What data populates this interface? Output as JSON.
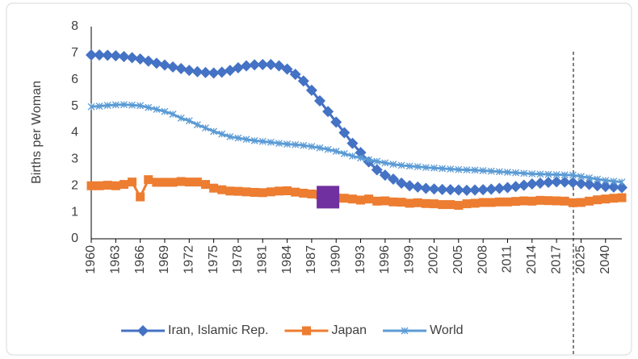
{
  "chart_data": {
    "type": "line",
    "y_label": "Births per Woman",
    "categories": [
      "1960",
      null,
      null,
      "1963",
      null,
      null,
      "1966",
      null,
      null,
      "1969",
      null,
      null,
      "1972",
      null,
      null,
      "1975",
      null,
      null,
      "1978",
      null,
      null,
      "1981",
      null,
      null,
      "1984",
      null,
      null,
      "1987",
      null,
      null,
      "1990",
      null,
      null,
      "1993",
      null,
      null,
      "1996",
      null,
      null,
      "1999",
      null,
      null,
      "2002",
      null,
      null,
      "2005",
      null,
      null,
      "2008",
      null,
      null,
      "2011",
      null,
      null,
      "2014",
      null,
      null,
      "2017",
      null,
      null,
      "2025",
      null,
      null,
      "2040",
      null,
      null
    ],
    "series": [
      {
        "name": "Iran, Islamic Rep.",
        "color": "#4472c4",
        "marker": "diamond",
        "values": [
          6.93,
          6.93,
          6.92,
          6.9,
          6.87,
          6.83,
          6.78,
          6.7,
          6.62,
          6.55,
          6.48,
          6.42,
          6.35,
          6.3,
          6.27,
          6.25,
          6.28,
          6.35,
          6.45,
          6.52,
          6.56,
          6.57,
          6.57,
          6.52,
          6.4,
          6.2,
          5.95,
          5.6,
          5.2,
          4.8,
          4.4,
          4.0,
          3.6,
          3.25,
          2.9,
          2.6,
          2.4,
          2.25,
          2.1,
          2.0,
          1.95,
          1.9,
          1.88,
          1.86,
          1.85,
          1.84,
          1.83,
          1.84,
          1.85,
          1.87,
          1.9,
          1.93,
          1.97,
          2.02,
          2.07,
          2.1,
          2.13,
          2.15,
          2.14,
          2.12,
          2.08,
          2.05,
          2.0,
          1.97,
          1.95,
          1.93
        ]
      },
      {
        "name": "Japan",
        "color": "#ed7d31",
        "marker": "square",
        "values": [
          2.0,
          2.0,
          2.02,
          2.0,
          2.05,
          2.14,
          1.58,
          2.23,
          2.13,
          2.13,
          2.13,
          2.16,
          2.14,
          2.14,
          2.05,
          1.91,
          1.85,
          1.8,
          1.79,
          1.77,
          1.75,
          1.74,
          1.77,
          1.8,
          1.81,
          1.76,
          1.72,
          1.69,
          1.66,
          1.57,
          1.54,
          1.53,
          1.5,
          1.46,
          1.5,
          1.42,
          1.43,
          1.39,
          1.38,
          1.34,
          1.36,
          1.33,
          1.32,
          1.29,
          1.29,
          1.26,
          1.32,
          1.34,
          1.37,
          1.37,
          1.39,
          1.39,
          1.41,
          1.43,
          1.42,
          1.45,
          1.44,
          1.43,
          1.42,
          1.36,
          1.37,
          1.42,
          1.47,
          1.5,
          1.53,
          1.55
        ]
      },
      {
        "name": "World",
        "color": "#5b9bd5",
        "marker": "star",
        "values": [
          4.98,
          5.0,
          5.03,
          5.05,
          5.06,
          5.04,
          5.02,
          4.95,
          4.88,
          4.8,
          4.7,
          4.55,
          4.45,
          4.3,
          4.18,
          4.05,
          3.95,
          3.85,
          3.8,
          3.75,
          3.7,
          3.67,
          3.64,
          3.6,
          3.57,
          3.55,
          3.52,
          3.48,
          3.43,
          3.37,
          3.3,
          3.21,
          3.12,
          3.05,
          2.98,
          2.92,
          2.86,
          2.81,
          2.77,
          2.74,
          2.72,
          2.69,
          2.67,
          2.65,
          2.63,
          2.61,
          2.6,
          2.59,
          2.57,
          2.55,
          2.53,
          2.51,
          2.49,
          2.47,
          2.45,
          2.44,
          2.43,
          2.42,
          2.41,
          2.4,
          2.35,
          2.3,
          2.25,
          2.2,
          2.17,
          2.14
        ]
      }
    ],
    "highlight": {
      "series": 1,
      "index": 29,
      "color": "#7030a0"
    },
    "ylim": [
      0,
      8
    ],
    "yticks": [
      0,
      1,
      2,
      3,
      4,
      5,
      6,
      7,
      8
    ],
    "legend": "bottom",
    "grid": false
  }
}
